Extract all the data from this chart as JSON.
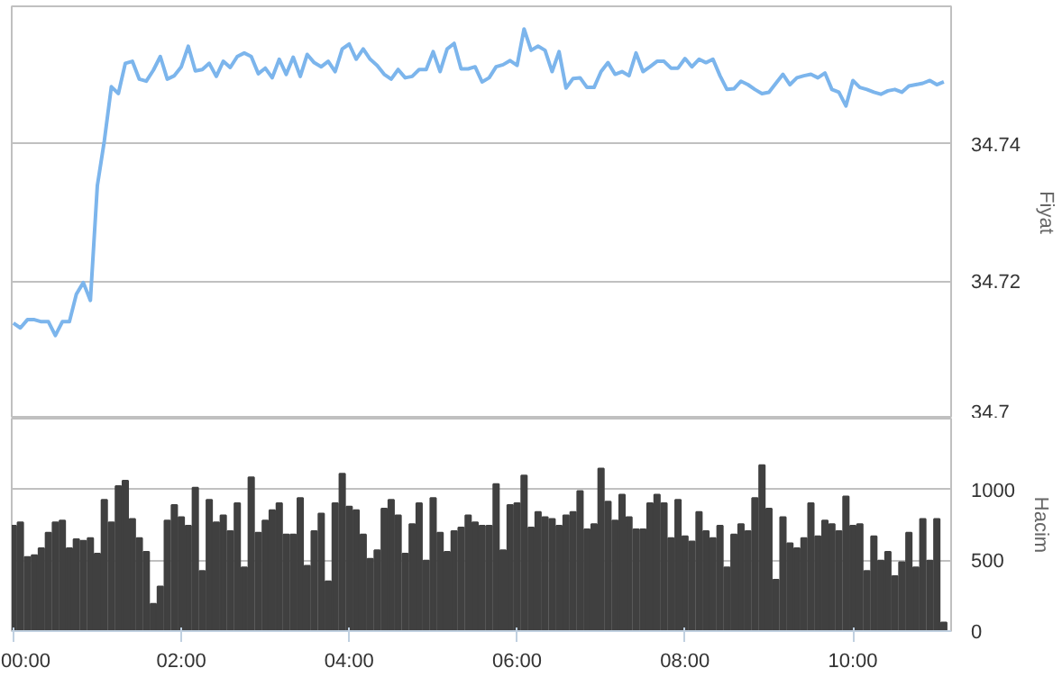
{
  "chart_data": [
    {
      "type": "line",
      "ylabel": "Fiyat",
      "ylim": [
        34.7,
        34.76
      ],
      "yticks": [
        34.7,
        34.72,
        34.74
      ],
      "xlim": [
        -0.02,
        11.17
      ],
      "grid": "y",
      "tick_labels": "y",
      "marker": "none",
      "x": [
        0,
        0.083,
        0.167,
        0.25,
        0.333,
        0.417,
        0.5,
        0.583,
        0.667,
        0.75,
        0.833,
        0.917,
        1,
        1.083,
        1.167,
        1.25,
        1.333,
        1.417,
        1.5,
        1.583,
        1.667,
        1.75,
        1.833,
        1.917,
        2,
        2.083,
        2.167,
        2.25,
        2.333,
        2.417,
        2.5,
        2.583,
        2.667,
        2.75,
        2.833,
        2.917,
        3,
        3.083,
        3.167,
        3.25,
        3.333,
        3.417,
        3.5,
        3.583,
        3.667,
        3.75,
        3.833,
        3.917,
        4,
        4.083,
        4.167,
        4.25,
        4.333,
        4.417,
        4.5,
        4.583,
        4.667,
        4.75,
        4.833,
        4.917,
        5,
        5.083,
        5.167,
        5.25,
        5.333,
        5.417,
        5.5,
        5.583,
        5.667,
        5.75,
        5.833,
        5.917,
        6,
        6.083,
        6.167,
        6.25,
        6.333,
        6.417,
        6.5,
        6.583,
        6.667,
        6.75,
        6.833,
        6.917,
        7,
        7.083,
        7.167,
        7.25,
        7.333,
        7.417,
        7.5,
        7.583,
        7.667,
        7.75,
        7.833,
        7.917,
        8,
        8.083,
        8.167,
        8.25,
        8.333,
        8.417,
        8.5,
        8.583,
        8.667,
        8.75,
        8.833,
        8.917,
        9,
        9.083,
        9.167,
        9.25,
        9.333,
        9.417,
        9.5,
        9.583,
        9.667,
        9.75,
        9.833,
        9.917,
        10,
        10.083,
        10.167,
        10.25,
        10.333,
        10.417,
        10.5,
        10.583,
        10.667,
        10.75,
        10.833,
        10.917,
        11,
        11.083
      ],
      "series": [
        {
          "color": "#7cb5ec",
          "values": [
            34.7139,
            34.7132,
            34.7144,
            34.7144,
            34.7141,
            34.7141,
            34.7121,
            34.7141,
            34.7141,
            34.7181,
            34.7198,
            34.7172,
            34.7339,
            34.7404,
            34.7483,
            34.7473,
            34.7517,
            34.752,
            34.7494,
            34.7491,
            34.7507,
            34.7527,
            34.7494,
            34.7499,
            34.7512,
            34.7542,
            34.7506,
            34.7508,
            34.7517,
            34.7498,
            34.752,
            34.7511,
            34.7527,
            34.7532,
            34.7527,
            34.7502,
            34.751,
            34.7496,
            34.7523,
            34.7501,
            34.7526,
            34.7498,
            34.753,
            34.7518,
            34.7512,
            34.752,
            34.7505,
            34.7538,
            34.7545,
            34.7523,
            34.7538,
            34.7523,
            34.7514,
            34.7501,
            34.7494,
            34.7508,
            34.7496,
            34.7498,
            34.7508,
            34.7508,
            34.7534,
            34.7505,
            34.7538,
            34.7546,
            34.7509,
            34.7509,
            34.7512,
            34.749,
            34.7496,
            34.7512,
            34.7515,
            34.7521,
            34.7514,
            34.7567,
            34.7536,
            34.7542,
            34.7536,
            34.7505,
            34.7534,
            34.7481,
            34.7495,
            34.7496,
            34.7482,
            34.7482,
            34.7505,
            34.7518,
            34.7501,
            34.7505,
            34.7499,
            34.7532,
            34.7505,
            34.7512,
            34.752,
            34.752,
            34.751,
            34.751,
            34.7524,
            34.7512,
            34.7523,
            34.7518,
            34.7523,
            34.7499,
            34.7479,
            34.748,
            34.7491,
            34.7486,
            34.7479,
            34.7473,
            34.7475,
            34.7488,
            34.7501,
            34.7486,
            34.7496,
            34.7499,
            34.7501,
            34.7496,
            34.7503,
            34.7479,
            34.7475,
            34.7455,
            34.7492,
            34.7482,
            34.7479,
            34.7475,
            34.7472,
            34.7477,
            34.7479,
            34.7475,
            34.7484,
            34.7486,
            34.7488,
            34.7492,
            34.7486,
            34.749
          ]
        }
      ]
    },
    {
      "type": "bar",
      "ylabel": "Hacim",
      "ylim": [
        0,
        1500
      ],
      "yticks": [
        0,
        500,
        1000
      ],
      "xlim": [
        -0.02,
        11.17
      ],
      "xticks": [
        {
          "value": 0,
          "label": "00:00"
        },
        {
          "value": 2,
          "label": "02:00"
        },
        {
          "value": 4,
          "label": "04:00"
        },
        {
          "value": 6,
          "label": "06:00"
        },
        {
          "value": 8,
          "label": "08:00"
        },
        {
          "value": 10,
          "label": "10:00"
        }
      ],
      "grid": "y",
      "x": [
        0,
        0.083,
        0.167,
        0.25,
        0.333,
        0.417,
        0.5,
        0.583,
        0.667,
        0.75,
        0.833,
        0.917,
        1,
        1.083,
        1.167,
        1.25,
        1.333,
        1.417,
        1.5,
        1.583,
        1.667,
        1.75,
        1.833,
        1.917,
        2,
        2.083,
        2.167,
        2.25,
        2.333,
        2.417,
        2.5,
        2.583,
        2.667,
        2.75,
        2.833,
        2.917,
        3,
        3.083,
        3.167,
        3.25,
        3.333,
        3.417,
        3.5,
        3.583,
        3.667,
        3.75,
        3.833,
        3.917,
        4,
        4.083,
        4.167,
        4.25,
        4.333,
        4.417,
        4.5,
        4.583,
        4.667,
        4.75,
        4.833,
        4.917,
        5,
        5.083,
        5.167,
        5.25,
        5.333,
        5.417,
        5.5,
        5.583,
        5.667,
        5.75,
        5.833,
        5.917,
        6,
        6.083,
        6.167,
        6.25,
        6.333,
        6.417,
        6.5,
        6.583,
        6.667,
        6.75,
        6.833,
        6.917,
        7,
        7.083,
        7.167,
        7.25,
        7.333,
        7.417,
        7.5,
        7.583,
        7.667,
        7.75,
        7.833,
        7.917,
        8,
        8.083,
        8.167,
        8.25,
        8.333,
        8.417,
        8.5,
        8.583,
        8.667,
        8.75,
        8.833,
        8.917,
        9,
        9.083,
        9.167,
        9.25,
        9.333,
        9.417,
        9.5,
        9.583,
        9.667,
        9.75,
        9.833,
        9.917,
        10,
        10.083,
        10.167,
        10.25,
        10.333,
        10.417,
        10.5,
        10.583,
        10.667,
        10.75,
        10.833,
        10.917,
        11,
        11.083
      ],
      "series": [
        {
          "color": "#404040",
          "values": [
            743,
            767,
            522,
            535,
            584,
            694,
            767,
            780,
            584,
            649,
            637,
            657,
            547,
            927,
            767,
            1024,
            1061,
            792,
            657,
            559,
            192,
            314,
            780,
            890,
            804,
            743,
            1012,
            424,
            927,
            767,
            816,
            706,
            902,
            449,
            1086,
            694,
            780,
            853,
            902,
            682,
            682,
            939,
            461,
            706,
            829,
            351,
            902,
            1110,
            878,
            853,
            682,
            510,
            571,
            865,
            927,
            816,
            547,
            755,
            902,
            498,
            939,
            694,
            559,
            706,
            731,
            816,
            767,
            743,
            743,
            1037,
            571,
            890,
            902,
            1098,
            731,
            841,
            804,
            792,
            743,
            816,
            841,
            988,
            718,
            755,
            1147,
            914,
            780,
            963,
            804,
            718,
            718,
            902,
            963,
            902,
            657,
            927,
            669,
            633,
            841,
            706,
            657,
            743,
            449,
            682,
            755,
            706,
            939,
            1171,
            865,
            363,
            804,
            620,
            584,
            657,
            902,
            669,
            780,
            755,
            706,
            951,
            743,
            755,
            424,
            669,
            498,
            559,
            388,
            486,
            694,
            449,
            792,
            498,
            792,
            61
          ]
        }
      ]
    }
  ]
}
